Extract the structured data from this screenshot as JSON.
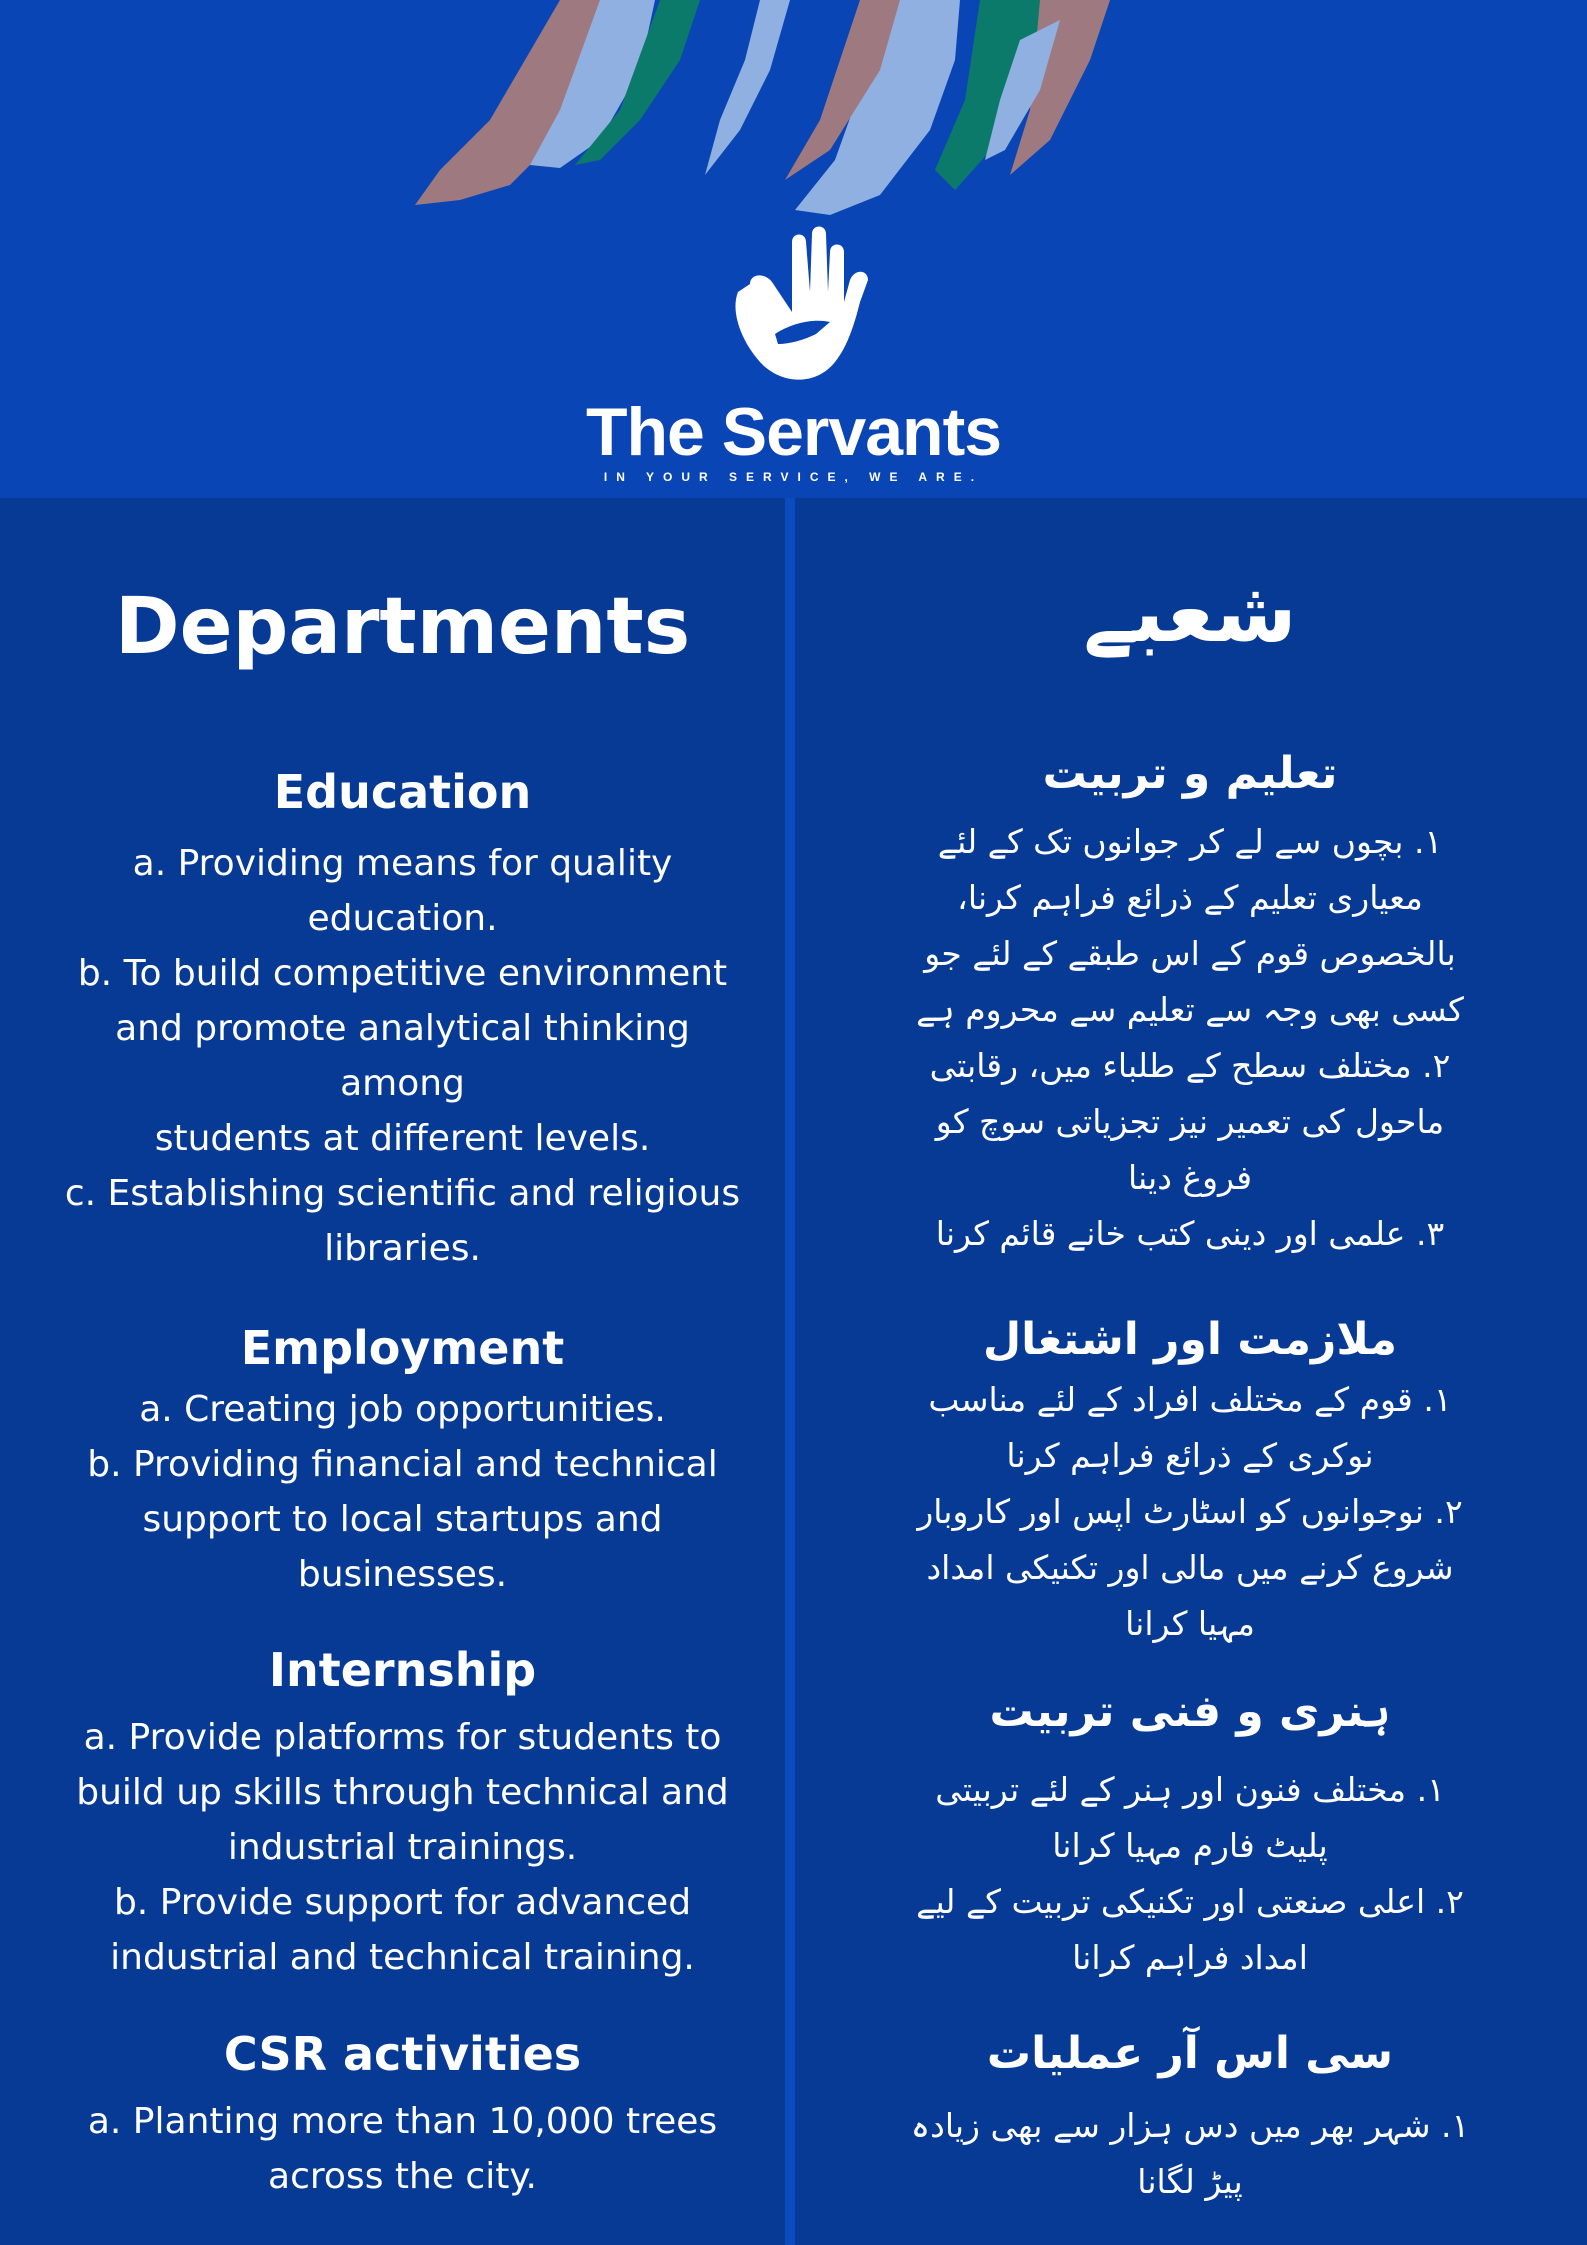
{
  "header": {
    "brand": "The Servants",
    "tagline": "IN YOUR SERVICE, WE ARE.",
    "colors": {
      "background": "#0a45b5",
      "stroke_rose": "#9e7a80",
      "stroke_light": "#8fb0e0",
      "stroke_green": "#0b7a6a"
    }
  },
  "english": {
    "title": "Departments",
    "sections": [
      {
        "heading": "Education",
        "lines": [
          "a.  Providing means for quality",
          "education.",
          "b. To build competitive environment",
          "and promote analytical thinking",
          "among",
          "students at different levels.",
          "c. Establishing scientific and religious",
          "libraries."
        ]
      },
      {
        "heading": "Employment",
        "lines": [
          "a. Creating job opportunities.",
          "b. Providing financial and technical",
          "support to local startups and",
          "businesses."
        ]
      },
      {
        "heading": "Internship",
        "lines": [
          "a. Provide platforms for students to",
          "build up skills through technical and",
          "industrial trainings.",
          "b. Provide support for advanced",
          "industrial and technical training."
        ]
      },
      {
        "heading": "CSR activities",
        "lines": [
          "a. Planting more than 10,000 trees",
          "across the city."
        ]
      }
    ]
  },
  "urdu": {
    "title": "شعبے",
    "sections": [
      {
        "heading": "تعلیم و تربیت",
        "lines": [
          "١. بچوں سے لے کر جوانوں تک کے لئے",
          "معیاری تعلیم کے ذرائع فراہم کرنا،",
          "بالخصوص قوم کے اس طبقے کے لئے جو",
          "کسی بھی وجہ سے تعلیم سے محروم ہے",
          "٢. مختلف سطح کے طلباء میں، رقابتی",
          "ماحول کی تعمیر نیز تجزیاتی سوچ کو",
          "فروغ دینا",
          "٣. علمی اور دینی کتب خانے قائم کرنا"
        ]
      },
      {
        "heading": "ملازمت اور اشتغال",
        "lines": [
          "١. قوم کے مختلف افراد کے لئے مناسب",
          "نوکری کے ذرائع فراہم کرنا",
          "٢. نوجوانوں کو اسٹارٹ اپس اور کاروبار",
          "شروع کرنے میں مالی اور تکنیکی امداد",
          "مہیا کرانا"
        ]
      },
      {
        "heading": "ہنری و فنی تربیت",
        "lines": [
          "١. مختلف فنون اور ہنر کے لئے تربیتی",
          "پلیٹ فارم مہیا کرانا",
          "٢. اعلی صنعتی اور تکنیکی تربیت کے لیے",
          "امداد فراہم کرانا"
        ]
      },
      {
        "heading": "سی اس آر عملیات",
        "lines": [
          "١. شہر بھر میں دس ہزار سے بھی زیادہ",
          "پیڑ لگانا"
        ]
      }
    ]
  }
}
